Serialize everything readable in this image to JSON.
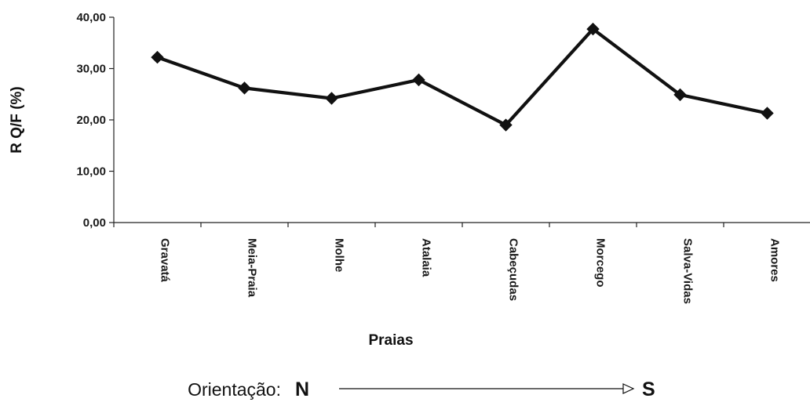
{
  "chart_data": {
    "type": "line",
    "xlabel": "Praias",
    "ylabel": "R Q/F (%)",
    "ylim": [
      0,
      40
    ],
    "yticks": [
      "0,00",
      "10,00",
      "20,00",
      "30,00",
      "40,00"
    ],
    "categories": [
      "Gravatá",
      "Meia-Praia",
      "Molhe",
      "Atalaia",
      "Cabeçudas",
      "Morcego",
      "Salva-Vidas",
      "Amores"
    ],
    "series": [
      {
        "values": [
          32.2,
          26.2,
          24.2,
          27.8,
          19.0,
          37.7,
          24.9,
          21.3
        ]
      }
    ],
    "grid": false,
    "legend": "none",
    "line_color": "#111111",
    "marker": "diamond"
  },
  "orientation": {
    "label": "Orientação:",
    "start": "N",
    "end": "S"
  }
}
